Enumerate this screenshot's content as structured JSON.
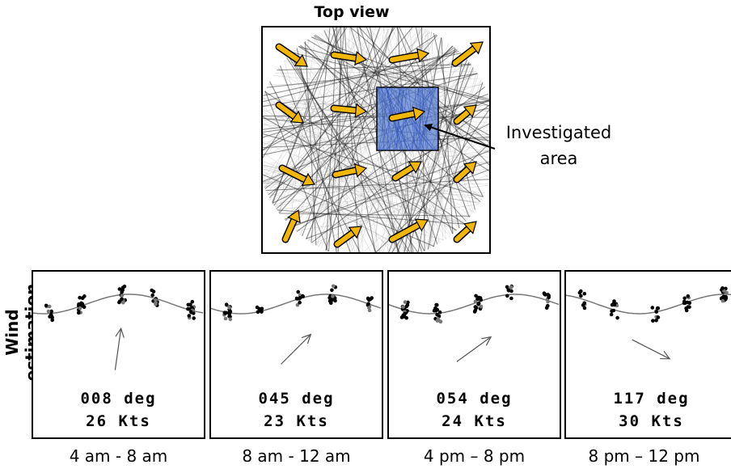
{
  "top_view": {
    "title": "Top view",
    "area_label_line1": "Investigated",
    "area_label_line2": "area",
    "arrow_color": "#f2b705",
    "area_color": "#5b7fd1"
  },
  "y_axis_label": "Wind estimation",
  "panels": [
    {
      "direction": "008 deg",
      "speed": "26 Kts",
      "time": "4 am - 8 am",
      "heading_deg": 8
    },
    {
      "direction": "045 deg",
      "speed": "23 Kts",
      "time": "8 am - 12 am",
      "heading_deg": 45
    },
    {
      "direction": "054 deg",
      "speed": "24 Kts",
      "time": "4 pm – 8 pm",
      "heading_deg": 54
    },
    {
      "direction": "117 deg",
      "speed": "30 Kts",
      "time": "8 pm – 12 pm",
      "heading_deg": 117
    }
  ]
}
